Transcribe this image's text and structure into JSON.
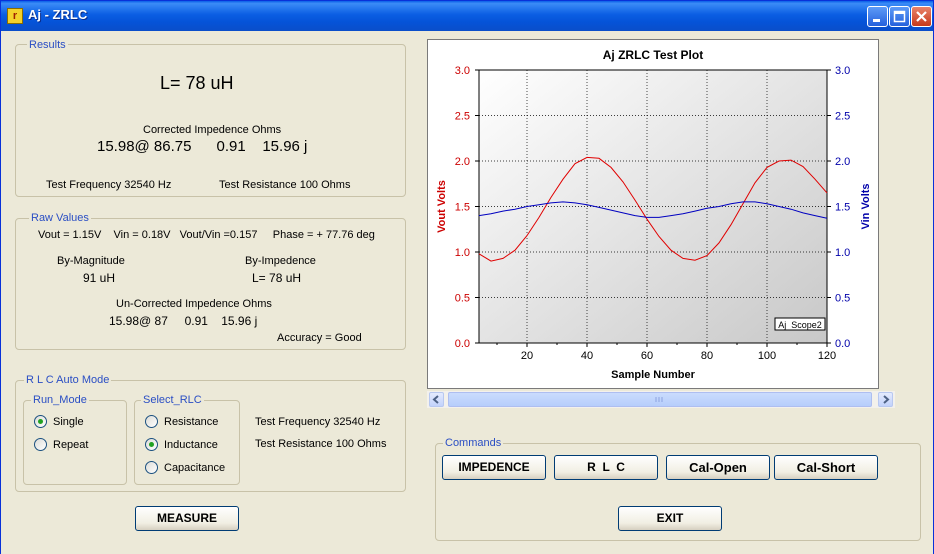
{
  "window": {
    "title": "Aj - ZRLC",
    "app_icon_glyph": "r",
    "controls": [
      "minimize-icon",
      "maximize-icon",
      "close-icon"
    ]
  },
  "results": {
    "legend": "Results",
    "inductance": "L= 78 uH",
    "corrected_label": "Corrected Impedence Ohms",
    "corrected_values": "15.98@ 86.75      0.91    15.96 j",
    "test_frequency": "Test Frequency  32540  Hz",
    "test_resistance": "Test Resistance  100 Ohms"
  },
  "raw": {
    "legend": "Raw Values",
    "line": "Vout = 1.15V    Vin = 0.18V   Vout/Vin =0.157     Phase = + 77.76 deg",
    "by_magnitude_label": "By-Magnitude",
    "by_magnitude_value": "91 uH",
    "by_impedence_label": "By-Impedence",
    "by_impedence_value": "L= 78 uH",
    "uncorrected_label": "Un-Corrected Impedence Ohms",
    "uncorrected_values": "15.98@ 87     0.91    15.96 j",
    "accuracy": "Accuracy = Good"
  },
  "rlc": {
    "legend": "R L C Auto Mode",
    "run_mode_legend": "Run_Mode",
    "run_modes": [
      {
        "label": "Single",
        "selected": true
      },
      {
        "label": "Repeat",
        "selected": false
      }
    ],
    "select_legend": "Select_RLC",
    "select_options": [
      {
        "label": "Resistance",
        "selected": false
      },
      {
        "label": "Inductance",
        "selected": true
      },
      {
        "label": "Capacitance",
        "selected": false
      }
    ],
    "test_frequency": "Test Frequency  32540  Hz",
    "test_resistance": "Test Resistance  100 Ohms"
  },
  "measure_label": "MEASURE",
  "commands": {
    "legend": "Commands",
    "buttons": [
      "IMPEDENCE",
      "R  L  C",
      "Cal-Open",
      "Cal-Short"
    ],
    "exit_label": "EXIT"
  },
  "chart_data": {
    "type": "line",
    "title": "Aj ZRLC Test Plot",
    "xlabel": "Sample Number",
    "ylabel": "Vout Volts",
    "y2label": "Vin Volts",
    "xlim": [
      4,
      120
    ],
    "ylim": [
      0,
      3
    ],
    "y2lim": [
      0,
      3
    ],
    "xticks": [
      20,
      40,
      60,
      80,
      100,
      120
    ],
    "yticks": [
      0.0,
      0.5,
      1.0,
      1.5,
      2.0,
      2.5,
      3.0
    ],
    "tick_labels_y": [
      "0.0",
      "0.5",
      "1.0",
      "1.5",
      "2.0",
      "2.5",
      "3.0"
    ],
    "grid": true,
    "annotation": "Aj_Scope2",
    "colors": {
      "vout": "#e00000",
      "vin": "#0000c0",
      "left_axis": "#cc0000",
      "right_axis": "#0000aa"
    },
    "series": [
      {
        "axis": "left",
        "color": "#e00000",
        "x": [
          4,
          8,
          12,
          16,
          20,
          24,
          28,
          32,
          36,
          40,
          44,
          48,
          52,
          56,
          60,
          64,
          68,
          72,
          76,
          80,
          84,
          88,
          92,
          96,
          100,
          104,
          108,
          112,
          116,
          120
        ],
        "y": [
          0.98,
          0.9,
          0.93,
          1.02,
          1.18,
          1.38,
          1.6,
          1.8,
          1.97,
          2.04,
          2.03,
          1.93,
          1.77,
          1.57,
          1.36,
          1.17,
          1.02,
          0.93,
          0.91,
          0.96,
          1.1,
          1.3,
          1.53,
          1.76,
          1.93,
          2.0,
          2.01,
          1.94,
          1.8,
          1.65
        ]
      },
      {
        "axis": "right",
        "color": "#0000c0",
        "x": [
          4,
          8,
          12,
          16,
          20,
          24,
          28,
          32,
          36,
          40,
          44,
          48,
          52,
          56,
          60,
          64,
          68,
          72,
          76,
          80,
          84,
          88,
          92,
          96,
          100,
          104,
          108,
          112,
          116,
          120
        ],
        "y": [
          1.4,
          1.42,
          1.45,
          1.47,
          1.5,
          1.52,
          1.54,
          1.55,
          1.54,
          1.52,
          1.49,
          1.46,
          1.43,
          1.4,
          1.38,
          1.38,
          1.4,
          1.42,
          1.45,
          1.48,
          1.5,
          1.53,
          1.55,
          1.55,
          1.53,
          1.5,
          1.47,
          1.43,
          1.4,
          1.37
        ]
      }
    ]
  }
}
